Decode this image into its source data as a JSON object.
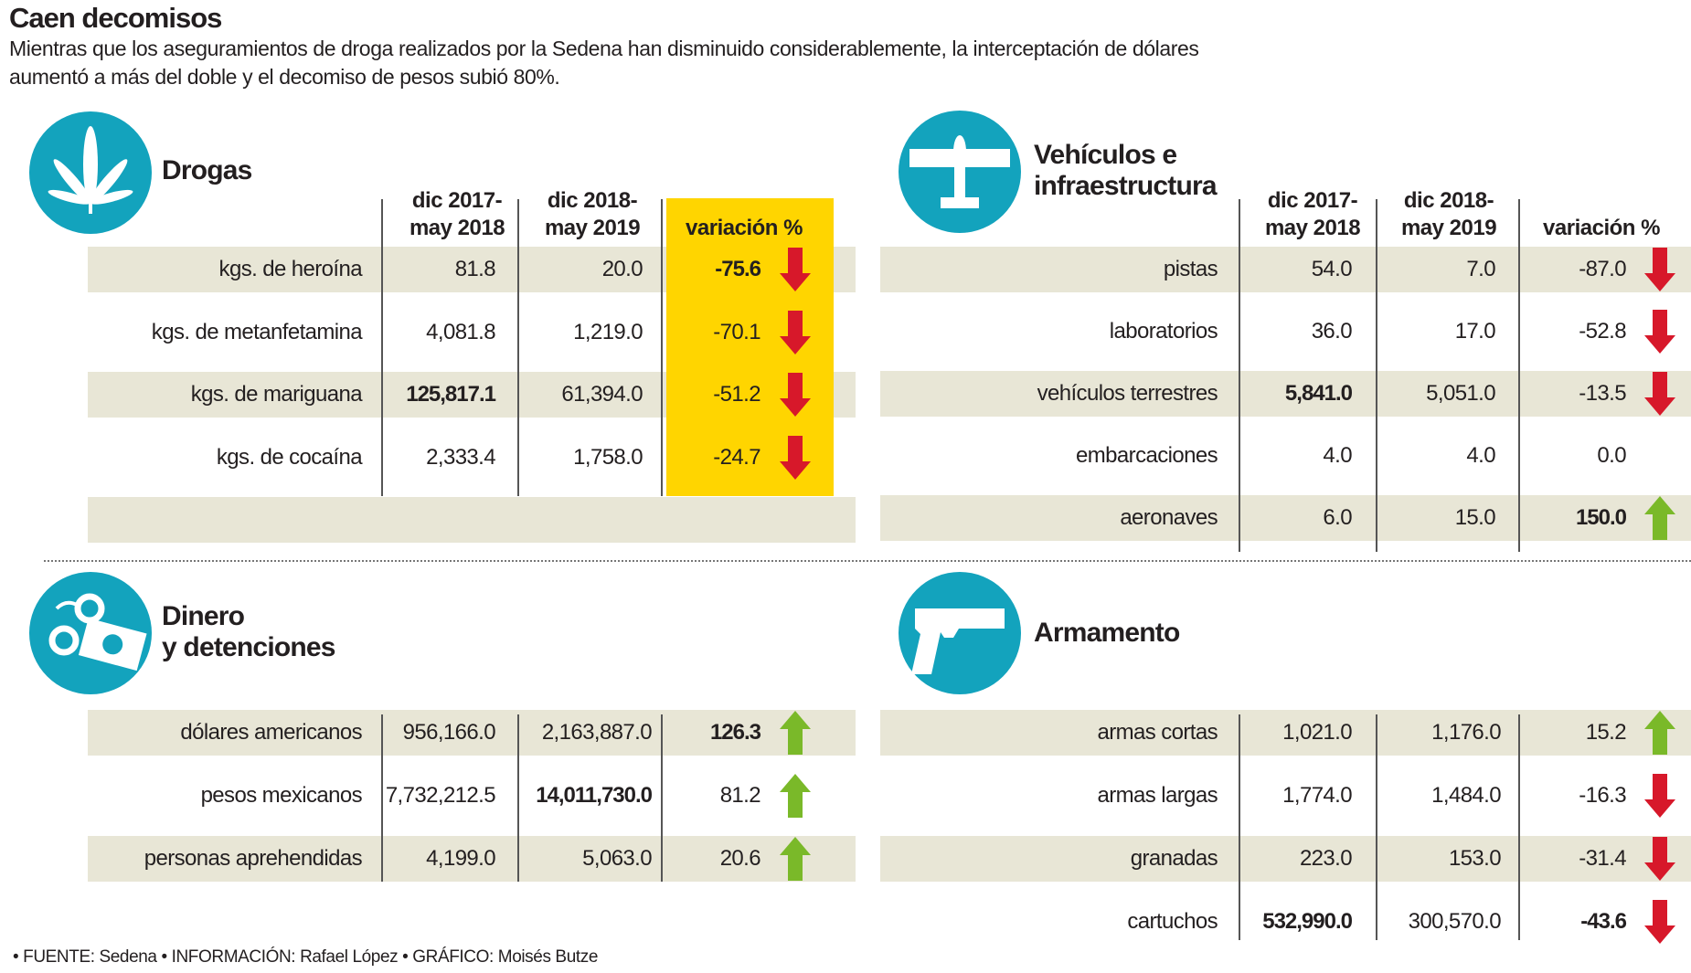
{
  "title": "Caen decomisos",
  "subtitle": [
    "Mientras que los aseguramientos de droga realizados por la Sedena han disminuido considerablemente, la interceptación de dólares",
    "aumentó a más del doble y el decomiso de pesos subió 80%."
  ],
  "colors": {
    "teal": "#13a3bd",
    "band": "#e8e6d6",
    "highlight": "#ffd500",
    "down": "#d7182a",
    "up": "#7ab929"
  },
  "headers": {
    "col1": [
      "dic 2017-",
      "may 2018"
    ],
    "col2": [
      "dic 2018-",
      "may 2019"
    ],
    "variation": "variación %"
  },
  "footer": "• FUENTE: Sedena • INFORMACIÓN: Rafael López • GRÁFICO: Moisés Butze",
  "chart_data": [
    {
      "type": "table",
      "title": "Drogas",
      "icon": "cannabis-leaf-icon",
      "columns": [
        "",
        "dic 2017-may 2018",
        "dic 2018-may 2019",
        "variación %"
      ],
      "rows": [
        {
          "label": "kgs. de heroína",
          "v1": "81.8",
          "v2": "20.0",
          "var": "-75.6",
          "trend": "down",
          "bold": "var"
        },
        {
          "label": "kgs. de metanfetamina",
          "v1": "4,081.8",
          "v2": "1,219.0",
          "var": "-70.1",
          "trend": "down"
        },
        {
          "label": "kgs. de mariguana",
          "v1": "125,817.1",
          "v2": "61,394.0",
          "var": "-51.2",
          "trend": "down",
          "bold": "v1"
        },
        {
          "label": "kgs. de cocaína",
          "v1": "2,333.4",
          "v2": "1,758.0",
          "var": "-24.7",
          "trend": "down"
        }
      ]
    },
    {
      "type": "table",
      "title": "Vehículos e infraestructura",
      "title_lines": [
        "Vehículos e",
        "infraestructura"
      ],
      "icon": "airplane-icon",
      "columns": [
        "",
        "dic 2017-may 2018",
        "dic 2018-may 2019",
        "variación %"
      ],
      "rows": [
        {
          "label": "pistas",
          "v1": "54.0",
          "v2": "7.0",
          "var": "-87.0",
          "trend": "down"
        },
        {
          "label": "laboratorios",
          "v1": "36.0",
          "v2": "17.0",
          "var": "-52.8",
          "trend": "down"
        },
        {
          "label": "vehículos terrestres",
          "v1": "5,841.0",
          "v2": "5,051.0",
          "var": "-13.5",
          "trend": "down",
          "bold": "v1"
        },
        {
          "label": "embarcaciones",
          "v1": "4.0",
          "v2": "4.0",
          "var": "0.0",
          "trend": "none"
        },
        {
          "label": "aeronaves",
          "v1": "6.0",
          "v2": "15.0",
          "var": "150.0",
          "trend": "up",
          "bold": "var"
        }
      ]
    },
    {
      "type": "table",
      "title": "Dinero y detenciones",
      "title_lines": [
        "Dinero",
        "y detenciones"
      ],
      "icon": "handcuffs-money-icon",
      "rows": [
        {
          "label": "dólares americanos",
          "v1": "956,166.0",
          "v2": "2,163,887.0",
          "var": "126.3",
          "trend": "up",
          "bold": "var"
        },
        {
          "label": "pesos mexicanos",
          "v1": "7,732,212.5",
          "v2": "14,011,730.0",
          "var": "81.2",
          "trend": "up",
          "bold": "v2"
        },
        {
          "label": "personas aprehendidas",
          "v1": "4,199.0",
          "v2": "5,063.0",
          "var": "20.6",
          "trend": "up"
        }
      ]
    },
    {
      "type": "table",
      "title": "Armamento",
      "icon": "pistol-icon",
      "rows": [
        {
          "label": "armas cortas",
          "v1": "1,021.0",
          "v2": "1,176.0",
          "var": "15.2",
          "trend": "up"
        },
        {
          "label": "armas largas",
          "v1": "1,774.0",
          "v2": "1,484.0",
          "var": "-16.3",
          "trend": "down"
        },
        {
          "label": "granadas",
          "v1": "223.0",
          "v2": "153.0",
          "var": "-31.4",
          "trend": "down"
        },
        {
          "label": "cartuchos",
          "v1": "532,990.0",
          "v2": "300,570.0",
          "var": "-43.6",
          "trend": "down",
          "bold": "v1,var"
        }
      ]
    }
  ]
}
